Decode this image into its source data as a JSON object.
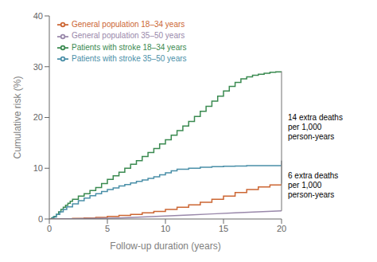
{
  "chart_data": {
    "type": "line",
    "xlabel": "Follow-up duration (years)",
    "ylabel": "Cumulative risk (%)",
    "xlim": [
      0,
      20
    ],
    "ylim": [
      0,
      40
    ],
    "xticks": [
      0,
      5,
      10,
      15,
      20
    ],
    "yticks": [
      0,
      10,
      20,
      30,
      40
    ],
    "grid": false,
    "legend": "upper left",
    "annotations": [
      "14 extra deaths\nper 1,000\nperson-years",
      "6 extra deaths\nper 1,000\nperson-years"
    ],
    "series": [
      {
        "name": "Patients with stroke 18–34 years",
        "color": "#3a8a50",
        "line_style": "step",
        "x": [
          0,
          0.2,
          0.4,
          0.6,
          0.8,
          1.0,
          1.2,
          1.4,
          1.6,
          1.8,
          2.0,
          2.5,
          3.0,
          3.5,
          4.0,
          4.5,
          5.0,
          5.5,
          6.0,
          6.5,
          7.0,
          7.5,
          8.0,
          8.5,
          9.0,
          9.5,
          10.0,
          10.5,
          11.0,
          11.5,
          12.0,
          12.5,
          13.0,
          13.5,
          14.0,
          14.5,
          15.0,
          15.5,
          16.0,
          16.5,
          17.0,
          17.5,
          18.0,
          18.5,
          19.0,
          19.5,
          20.0
        ],
        "values": [
          0,
          0.2,
          0.5,
          0.9,
          1.4,
          1.9,
          2.3,
          2.7,
          3.1,
          3.5,
          3.9,
          4.5,
          5.0,
          5.6,
          6.2,
          7.0,
          7.8,
          8.5,
          9.2,
          10.0,
          10.8,
          11.5,
          12.3,
          13.1,
          13.9,
          14.8,
          15.6,
          16.5,
          17.4,
          18.3,
          19.2,
          20.2,
          21.2,
          22.2,
          23.2,
          24.2,
          25.2,
          26.1,
          26.9,
          27.6,
          28.0,
          28.3,
          28.5,
          28.7,
          28.9,
          29.0,
          29.1
        ]
      },
      {
        "name": "Patients with stroke 35–50 years",
        "color": "#4a8fa8",
        "line_style": "step",
        "x": [
          0,
          0.3,
          0.6,
          0.9,
          1.2,
          1.5,
          2.0,
          2.5,
          3.0,
          3.5,
          4.0,
          4.5,
          5.0,
          5.5,
          6.0,
          6.5,
          7.0,
          7.5,
          8.0,
          8.5,
          9.0,
          9.5,
          10.0,
          10.5,
          11.0,
          12.0,
          13.0,
          14.0,
          15.0,
          16.0,
          17.0,
          18.0,
          19.0,
          19.8,
          20.0
        ],
        "values": [
          0,
          0.4,
          0.9,
          1.4,
          1.9,
          2.4,
          3.0,
          3.6,
          4.1,
          4.6,
          5.0,
          5.4,
          5.8,
          6.1,
          6.5,
          6.8,
          7.1,
          7.4,
          7.7,
          8.0,
          8.3,
          8.7,
          9.1,
          9.5,
          9.8,
          10.0,
          10.2,
          10.3,
          10.4,
          10.45,
          10.5,
          10.5,
          10.5,
          10.5,
          11.5
        ]
      },
      {
        "name": "General population 18–34 years",
        "color": "#cc6633",
        "line_style": "step",
        "x": [
          0,
          1,
          2,
          3,
          4,
          5,
          6,
          7,
          8,
          9,
          10,
          11,
          12,
          13,
          14,
          15,
          16,
          17,
          18,
          19,
          20
        ],
        "values": [
          0,
          0.05,
          0.1,
          0.2,
          0.3,
          0.5,
          0.7,
          0.9,
          1.2,
          1.5,
          1.9,
          2.3,
          2.8,
          3.3,
          3.9,
          4.5,
          5.2,
          5.8,
          6.3,
          6.7,
          7.0
        ]
      },
      {
        "name": "General population 35–50 years",
        "color": "#9988aa",
        "line_style": "solid",
        "x": [
          0,
          2,
          4,
          6,
          8,
          10,
          12,
          14,
          16,
          18,
          20
        ],
        "values": [
          0,
          0.05,
          0.1,
          0.2,
          0.4,
          0.6,
          0.8,
          1.0,
          1.2,
          1.4,
          1.6
        ]
      }
    ]
  }
}
